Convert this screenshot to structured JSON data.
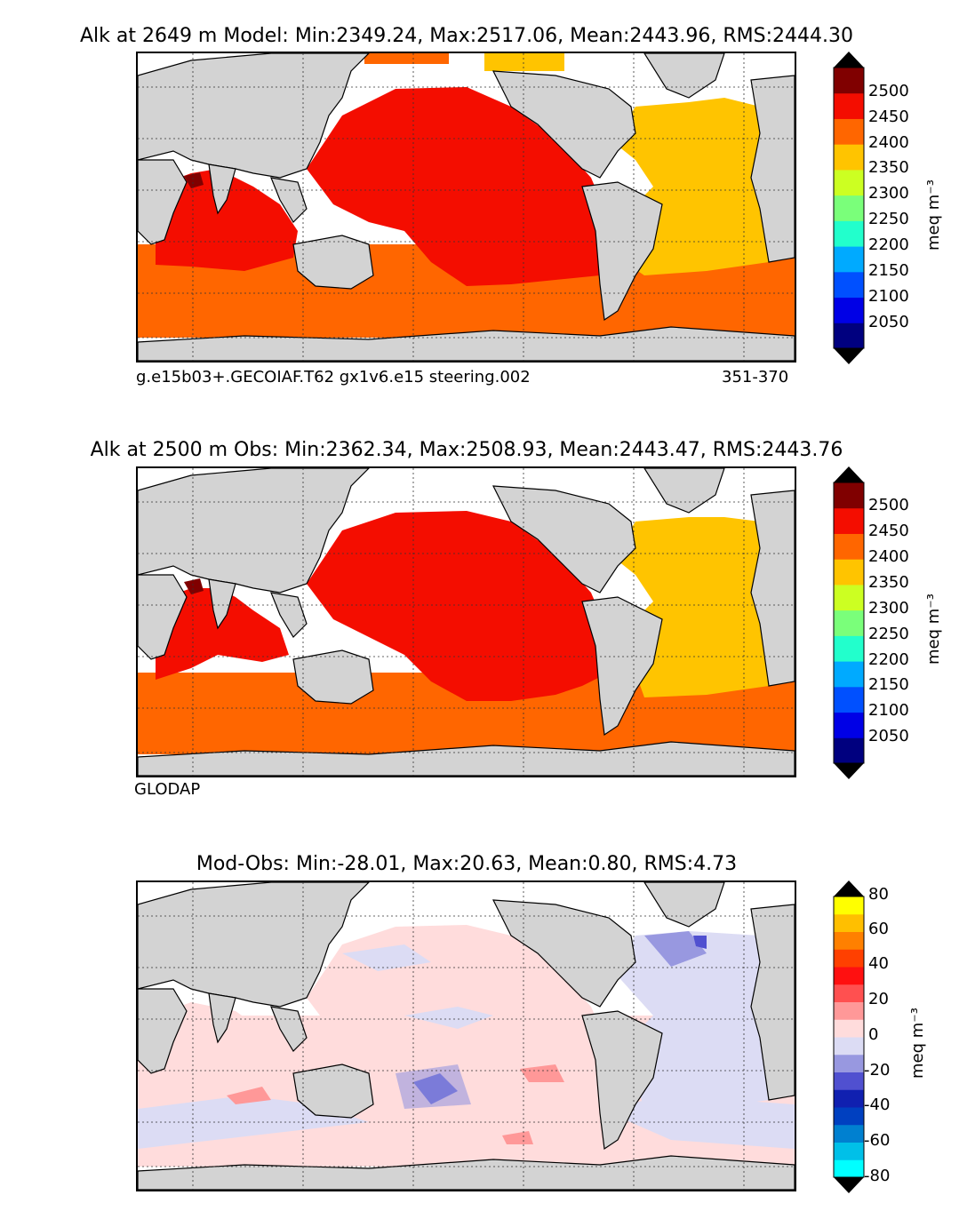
{
  "colors": {
    "land": "#d3d3d3",
    "coast": "#000000",
    "no_data": "#ffffff",
    "alk_levels": [
      "#00007f",
      "#0000e6",
      "#0050ff",
      "#00aaff",
      "#22ffcc",
      "#7aff7a",
      "#ccff22",
      "#ffc400",
      "#ff6600",
      "#f40d00",
      "#800000"
    ],
    "alk_over": "#000000",
    "alk_under": "#000000",
    "diff_levels": [
      "#00ffff",
      "#00c0e8",
      "#0080d0",
      "#0040c0",
      "#1020b0",
      "#5050d0",
      "#9898e0",
      "#dcdcf4",
      "#ffdcdc",
      "#ff9898",
      "#ff5050",
      "#ff1010",
      "#ff4000",
      "#ff8000",
      "#ffbf00",
      "#ffff00"
    ]
  },
  "panels": [
    {
      "id": "model",
      "title": "Alk at 2649 m Model: Min:2349.24, Max:2517.06, Mean:2443.96, RMS:2444.30",
      "caption_left": "g.e15b03+.GECOIAF.T62 gx1v6.e15 steering.002",
      "caption_right": "351-370",
      "colorbar": {
        "ticks": [
          "2500",
          "2450",
          "2400",
          "2350",
          "2300",
          "2250",
          "2200",
          "2150",
          "2100",
          "2050"
        ],
        "unit": "meq m⁻³"
      }
    },
    {
      "id": "obs",
      "title": "Alk at 2500 m Obs: Min:2362.34, Max:2508.93, Mean:2443.47, RMS:2443.76",
      "caption_left": "GLODAP",
      "caption_right": "",
      "colorbar": {
        "ticks": [
          "2500",
          "2450",
          "2400",
          "2350",
          "2300",
          "2250",
          "2200",
          "2150",
          "2100",
          "2050"
        ],
        "unit": "meq m⁻³"
      }
    },
    {
      "id": "diff",
      "title": "Mod-Obs: Min:-28.01, Max:20.63, Mean:0.80, RMS:4.73",
      "caption_left": "",
      "caption_right": "",
      "colorbar": {
        "ticks": [
          "80",
          "60",
          "40",
          "20",
          "0",
          "-20",
          "-40",
          "-60",
          "-80"
        ],
        "unit": "meq m⁻³"
      }
    }
  ],
  "map": {
    "projection": "cylindrical equidistant, Pacific-centred",
    "gridlines": "dotted",
    "continents": [
      "Africa",
      "Eurasia",
      "Australia",
      "North America",
      "South America",
      "Antarctica",
      "Greenland"
    ]
  }
}
